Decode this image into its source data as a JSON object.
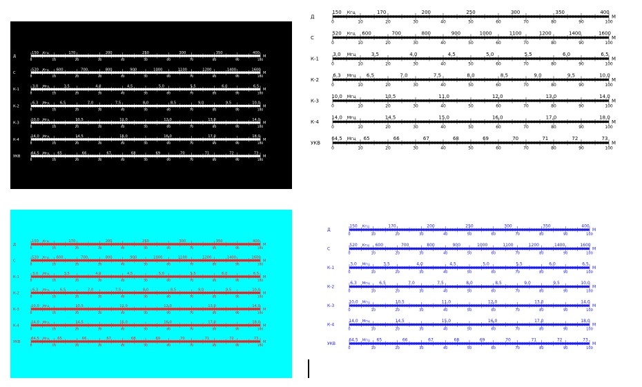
{
  "figure": {
    "unit": "М",
    "scale_marks": [
      "0",
      "10",
      "20",
      "30",
      "40",
      "50",
      "60",
      "70",
      "80",
      "90",
      "100"
    ],
    "bands": [
      {
        "id": "д",
        "label": "Д",
        "unit": "Кгц",
        "freqs": [
          "150",
          "170",
          "200",
          "250",
          "300",
          "350",
          "400"
        ]
      },
      {
        "id": "с",
        "label": "С",
        "unit": "Кгц",
        "freqs": [
          "520",
          "600",
          "700",
          "800",
          "900",
          "1000",
          "1100",
          "1200",
          "1400",
          "1600"
        ]
      },
      {
        "id": "k1",
        "label": "К-1",
        "unit": "Мгц",
        "freqs": [
          "3,0",
          "3,5",
          "4,0",
          "4,5",
          "5,0",
          "5,5",
          "6,0",
          "6,5"
        ]
      },
      {
        "id": "k2",
        "label": "К-2",
        "unit": "Мгц",
        "freqs": [
          "6,3",
          "6,5",
          "7,0",
          "7,5",
          "8,0",
          "8,5",
          "9,0",
          "9,5",
          "10,0"
        ]
      },
      {
        "id": "k3",
        "label": "К-3",
        "unit": "Мгц",
        "freqs": [
          "10,0",
          "10,5",
          "11,0",
          "12,0",
          "13,0",
          "14,0"
        ]
      },
      {
        "id": "k4",
        "label": "К-4",
        "unit": "Мгц",
        "freqs": [
          "14,0",
          "14,5",
          "15,0",
          "16,0",
          "17,0",
          "18,0"
        ]
      },
      {
        "id": "ukv",
        "label": "УКВ",
        "unit": "Мгц",
        "freqs": [
          "64,5",
          "65",
          "66",
          "67",
          "68",
          "69",
          "70",
          "71",
          "72",
          "73"
        ]
      }
    ]
  },
  "variants": [
    {
      "id": "black",
      "background": "#000000",
      "ink": "#ffffff"
    },
    {
      "id": "white",
      "background": "#ffffff",
      "ink": "#000000"
    },
    {
      "id": "cyan",
      "background": "#00ffff",
      "ink": "#ff1a1a"
    },
    {
      "id": "blue",
      "background": "#ffffff",
      "ink": "#1a1aff"
    }
  ]
}
